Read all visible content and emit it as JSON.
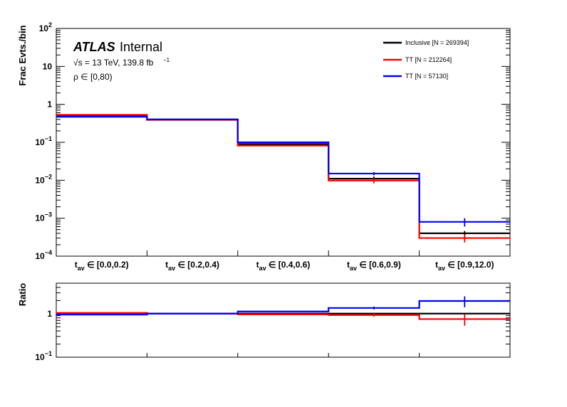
{
  "chart_data": [
    {
      "type": "step",
      "panel": "main",
      "ylabel": "Frac Evts./bin",
      "yscale": "log",
      "ylim": [
        0.0001,
        100
      ],
      "y_ticks": [
        {
          "v": 100,
          "label": "10",
          "exp": "2"
        },
        {
          "v": 10,
          "label": "10",
          "exp": ""
        },
        {
          "v": 1,
          "label": "1",
          "exp": ""
        },
        {
          "v": 0.1,
          "label": "10",
          "exp": "−1"
        },
        {
          "v": 0.01,
          "label": "10",
          "exp": "−2"
        },
        {
          "v": 0.001,
          "label": "10",
          "exp": "−3"
        },
        {
          "v": 0.0001,
          "label": "10",
          "exp": "−4"
        }
      ],
      "categories": [
        {
          "main": "t",
          "sub": "av",
          "rest": " ∈ [0.0,0.2)"
        },
        {
          "main": "t",
          "sub": "av",
          "rest": " ∈ [0.2,0.4)"
        },
        {
          "main": "t",
          "sub": "av",
          "rest": " ∈ [0.4,0.6)"
        },
        {
          "main": "t",
          "sub": "av",
          "rest": " ∈ [0.6,0.9)"
        },
        {
          "main": "t",
          "sub": "av",
          "rest": " ∈ [0.9,12.0)"
        }
      ],
      "series": [
        {
          "name": "Inclusive [N = 269394]",
          "color": "#000000",
          "values": [
            0.5,
            0.4,
            0.09,
            0.011,
            0.0004
          ],
          "errors": [
            0,
            0,
            0,
            0.0015,
            6e-05
          ]
        },
        {
          "name": "TT [N = 212264]",
          "color": "#ff0000",
          "values": [
            0.53,
            0.39,
            0.082,
            0.0098,
            0.0003
          ],
          "errors": [
            0,
            0,
            0,
            0.0015,
            7e-05
          ]
        },
        {
          "name": "TT [N = 57130]",
          "color": "#0000ff",
          "values": [
            0.47,
            0.4,
            0.1,
            0.015,
            0.0008
          ],
          "errors": [
            0,
            0,
            0,
            0.0015,
            0.0002
          ]
        }
      ],
      "legend_position": "top-right",
      "annotations": {
        "experiment": "ATLAS",
        "status": "Internal",
        "energy_pre": "√s = 13 TeV, 139.8 fb",
        "energy_exp": "−1",
        "region": "ρ ∈ [0,80)"
      }
    },
    {
      "type": "step",
      "panel": "ratio",
      "ylabel": "Ratio",
      "yscale": "log",
      "ylim": [
        0.1,
        5
      ],
      "y_ticks": [
        {
          "v": 1,
          "label": "1",
          "exp": ""
        },
        {
          "v": 0.1,
          "label": "10",
          "exp": "−1"
        }
      ],
      "series": [
        {
          "name": "Inclusive [N = 269394]",
          "color": "#000000",
          "values": [
            1.0,
            1.0,
            1.0,
            1.0,
            1.0
          ],
          "errors": [
            0,
            0,
            0,
            0,
            0
          ]
        },
        {
          "name": "TT [N = 212264]",
          "color": "#ff0000",
          "values": [
            1.04,
            1.0,
            0.96,
            0.93,
            0.75
          ],
          "errors": [
            0,
            0,
            0,
            0.08,
            0.22
          ]
        },
        {
          "name": "TT [N = 57130]",
          "color": "#0000ff",
          "values": [
            0.95,
            1.0,
            1.12,
            1.35,
            1.95
          ],
          "errors": [
            0,
            0,
            0,
            0.1,
            0.55
          ]
        }
      ]
    }
  ]
}
